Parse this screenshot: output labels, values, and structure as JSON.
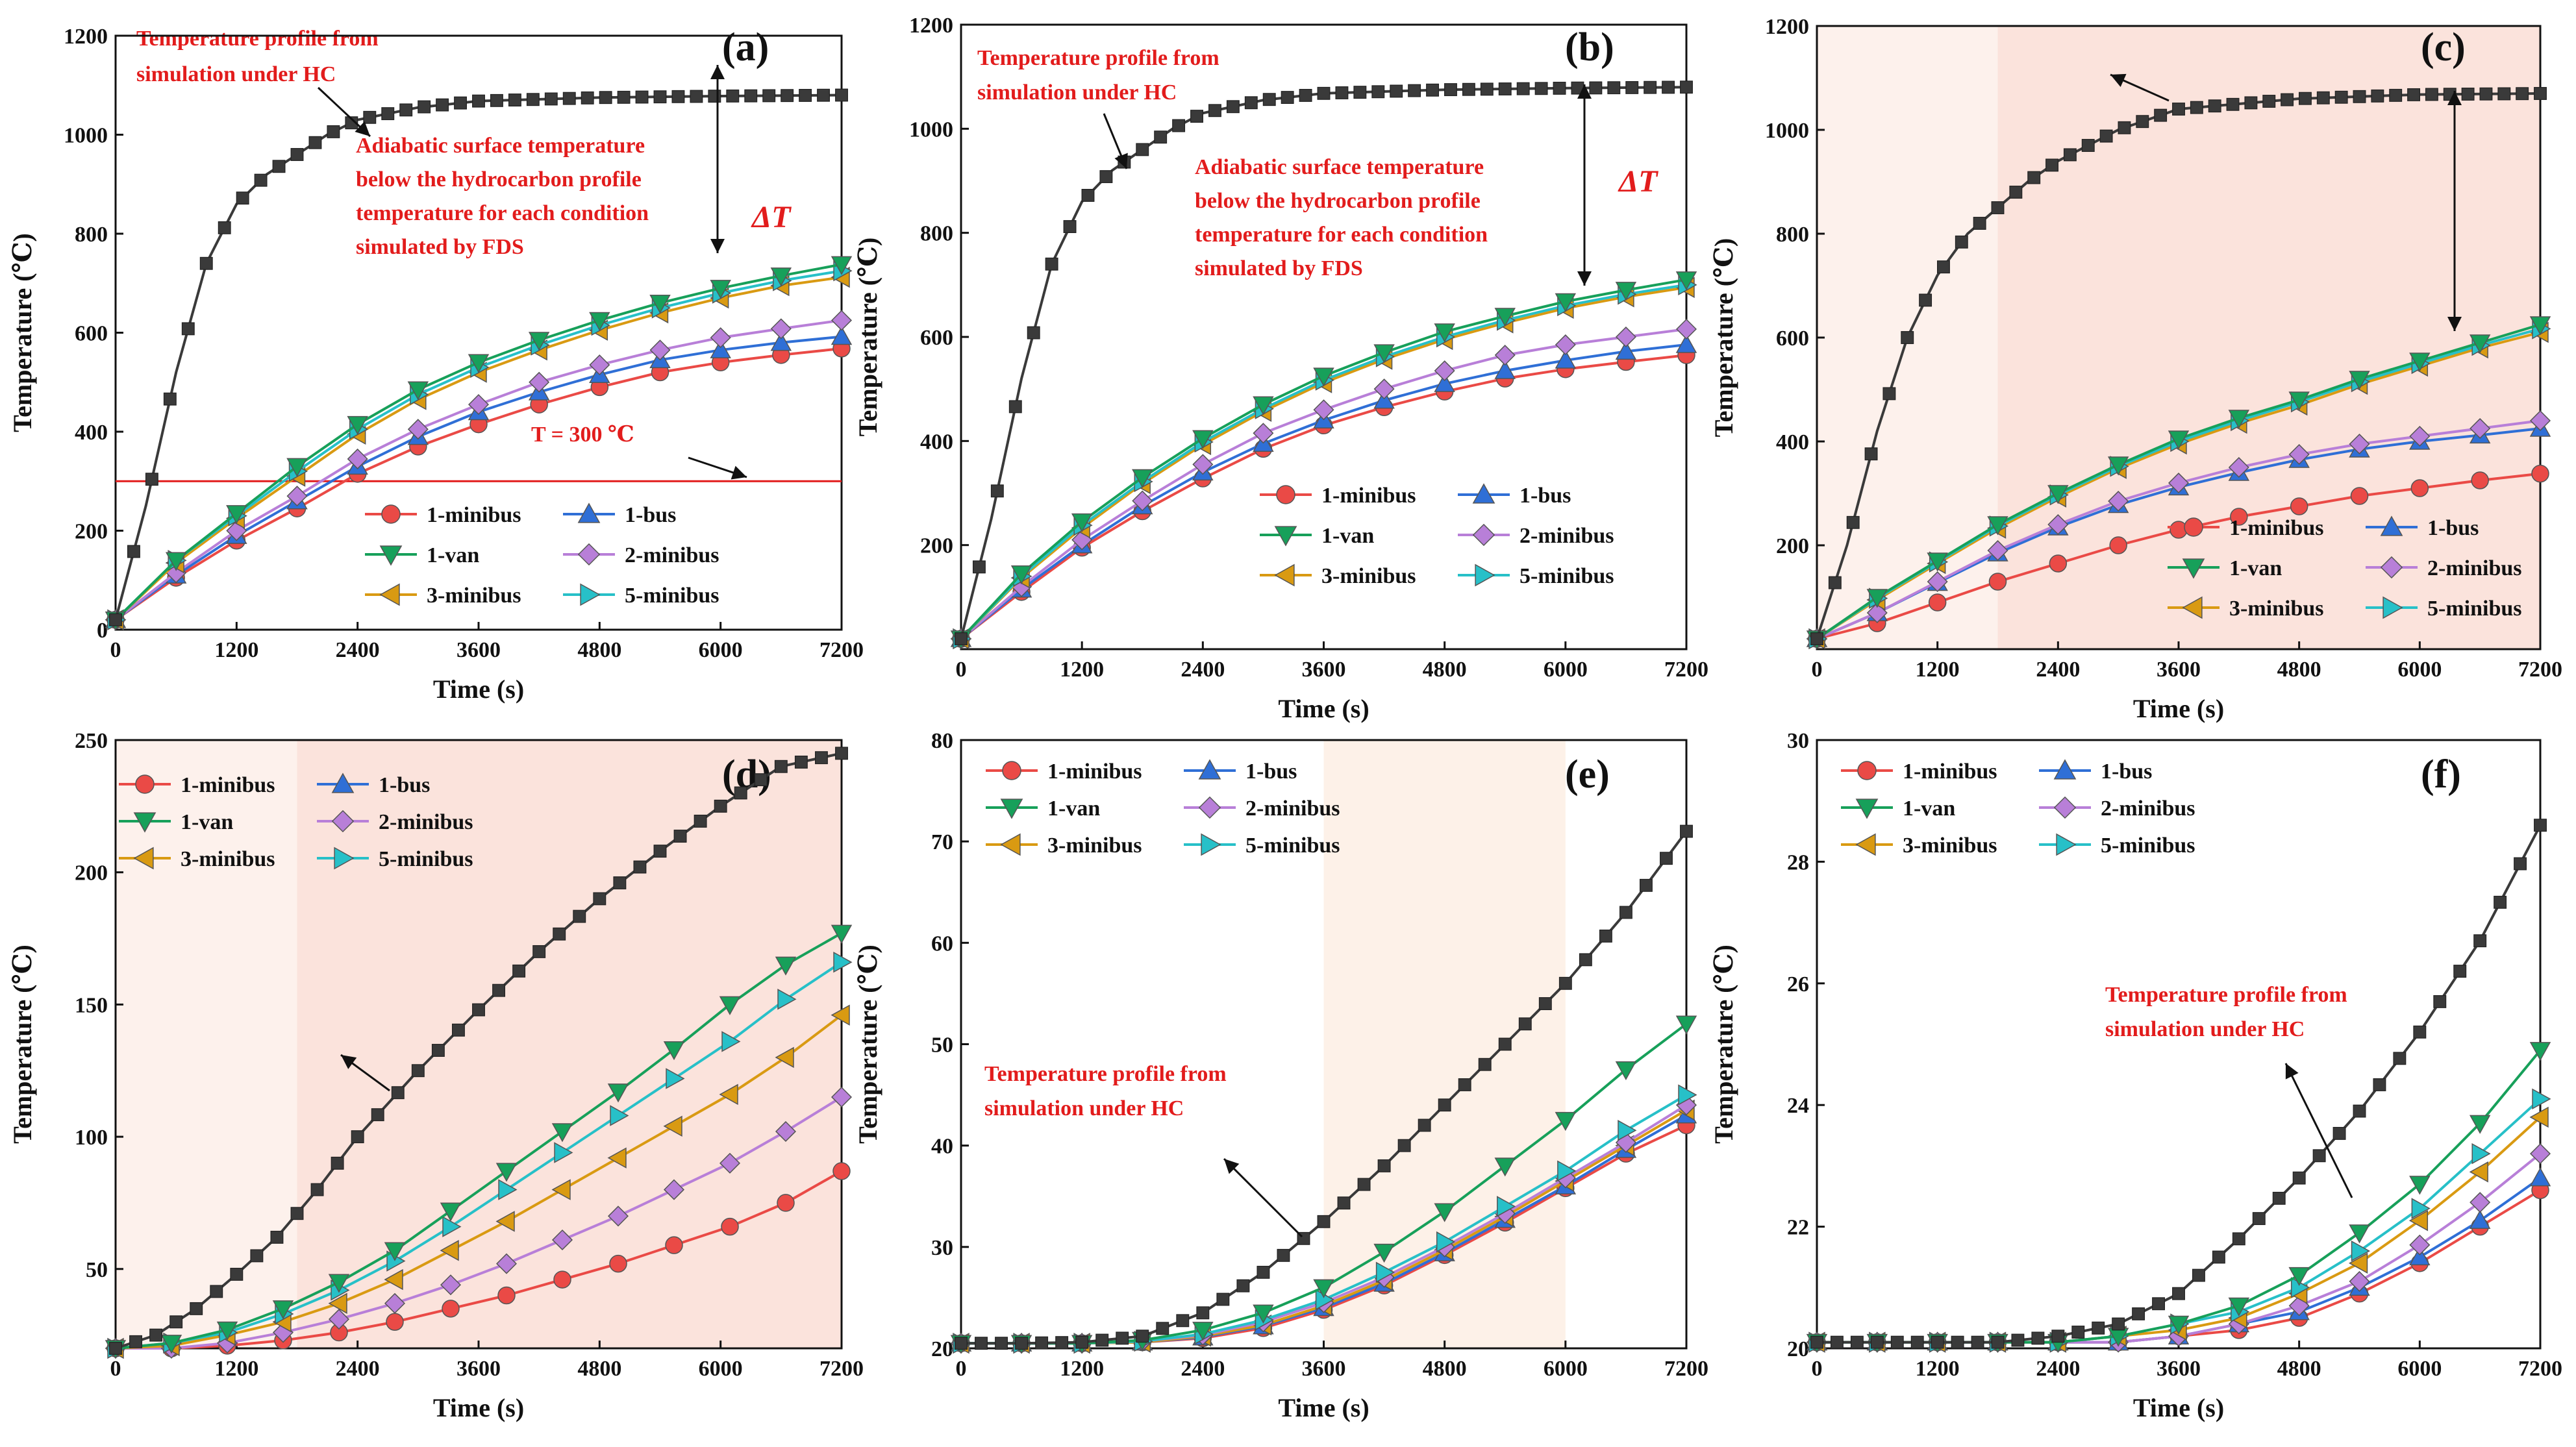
{
  "colors": {
    "HC": "#3a3a3a",
    "1-minibus": "#ea4a46",
    "1-bus": "#2f6fd6",
    "1-van": "#17a05a",
    "2-minibus": "#b87fd8",
    "3-minibus": "#d99a12",
    "5-minibus": "#27c0c8",
    "annotation": "#e21c1c",
    "threshold": "#e21c1c",
    "shade": "#fbe7e0"
  },
  "legend_labels": {
    "m1": "1-minibus",
    "b1": "1-bus",
    "v1": "1-van",
    "m2": "2-minibus",
    "m3": "3-minibus",
    "m5": "5-minibus"
  },
  "annotations": {
    "hc_line1": "Temperature profile from",
    "hc_line2": "simulation under HC",
    "adi_line1": "Adiabatic surface temperature",
    "adi_line2": "below the hydrocarbon profile",
    "adi_line3": "temperature for each condition",
    "adi_line4": "simulated by FDS",
    "delta_t": "ΔT",
    "threshold": "T = 300 ℃"
  },
  "chart_data": [
    {
      "panel": "(a)",
      "type": "line",
      "xlabel": "Time (s)",
      "ylabel": "Temperature (℃)",
      "xlim": [
        0,
        7200
      ],
      "ylim": [
        0,
        1200
      ],
      "xticks": [
        0,
        1200,
        2400,
        3600,
        4800,
        6000,
        7200
      ],
      "yticks": [
        0,
        200,
        400,
        600,
        800,
        1000,
        1200
      ],
      "threshold": 300,
      "hc": {
        "name": "HC",
        "x": [
          0,
          300,
          600,
          900,
          1200,
          1500,
          1800,
          2100,
          2400,
          3000,
          3600,
          4800,
          6000,
          7200
        ],
        "y": [
          20,
          250,
          520,
          740,
          860,
          920,
          960,
          1000,
          1030,
          1055,
          1068,
          1075,
          1078,
          1080
        ]
      },
      "series": [
        {
          "name": "1-van",
          "v": [
            20,
            140,
            235,
            330,
            415,
            485,
            540,
            585,
            625,
            660,
            690,
            715,
            738
          ]
        },
        {
          "name": "5-minibus",
          "v": [
            20,
            140,
            230,
            320,
            405,
            475,
            530,
            575,
            615,
            650,
            680,
            705,
            725
          ]
        },
        {
          "name": "3-minibus",
          "v": [
            20,
            135,
            225,
            310,
            395,
            465,
            520,
            565,
            605,
            640,
            670,
            695,
            712
          ]
        },
        {
          "name": "2-minibus",
          "v": [
            20,
            115,
            200,
            270,
            345,
            405,
            455,
            500,
            535,
            565,
            590,
            608,
            625
          ]
        },
        {
          "name": "1-bus",
          "v": [
            20,
            110,
            190,
            260,
            330,
            390,
            440,
            480,
            515,
            545,
            565,
            580,
            592
          ]
        },
        {
          "name": "1-minibus",
          "v": [
            20,
            105,
            180,
            245,
            315,
            370,
            415,
            455,
            490,
            520,
            540,
            555,
            568
          ]
        }
      ]
    },
    {
      "panel": "(b)",
      "type": "line",
      "xlabel": "Time (s)",
      "ylabel": "Temperature (℃)",
      "xlim": [
        0,
        7200
      ],
      "ylim": [
        0,
        1200
      ],
      "xticks": [
        0,
        1200,
        2400,
        3600,
        4800,
        6000,
        7200
      ],
      "yticks": [
        200,
        400,
        600,
        800,
        1000,
        1200
      ],
      "hc": {
        "name": "HC",
        "x": [
          0,
          300,
          600,
          900,
          1200,
          1500,
          1800,
          2100,
          2400,
          3000,
          3600,
          4800,
          6000,
          7200
        ],
        "y": [
          20,
          250,
          520,
          740,
          860,
          920,
          960,
          1000,
          1030,
          1055,
          1068,
          1075,
          1078,
          1080
        ]
      },
      "series": [
        {
          "name": "1-van",
          "v": [
            20,
            145,
            245,
            330,
            405,
            470,
            525,
            570,
            610,
            640,
            668,
            690,
            710
          ]
        },
        {
          "name": "5-minibus",
          "v": [
            20,
            140,
            238,
            322,
            398,
            462,
            517,
            562,
            600,
            632,
            660,
            682,
            700
          ]
        },
        {
          "name": "3-minibus",
          "v": [
            20,
            137,
            233,
            318,
            393,
            457,
            512,
            557,
            595,
            627,
            655,
            677,
            695
          ]
        },
        {
          "name": "2-minibus",
          "v": [
            20,
            120,
            210,
            285,
            355,
            415,
            460,
            500,
            535,
            565,
            585,
            600,
            615
          ]
        },
        {
          "name": "1-bus",
          "v": [
            20,
            115,
            200,
            275,
            340,
            395,
            440,
            478,
            510,
            535,
            555,
            572,
            585
          ]
        },
        {
          "name": "1-minibus",
          "v": [
            20,
            110,
            195,
            265,
            328,
            385,
            430,
            465,
            495,
            520,
            538,
            552,
            565
          ]
        }
      ]
    },
    {
      "panel": "(c)",
      "type": "line",
      "xlabel": "Time (s)",
      "ylabel": "Temperature (℃)",
      "xlim": [
        0,
        7200
      ],
      "ylim": [
        0,
        1200
      ],
      "xticks": [
        0,
        1200,
        2400,
        3600,
        4800,
        6000,
        7200
      ],
      "yticks": [
        200,
        400,
        600,
        800,
        1000,
        1200
      ],
      "shade_ranges": [
        [
          0,
          1800,
          "#fdf1ec"
        ],
        [
          1800,
          7200,
          "#fbe3dc"
        ]
      ],
      "hc": {
        "name": "HC",
        "x": [
          0,
          300,
          600,
          900,
          1200,
          1500,
          1800,
          2100,
          2400,
          3000,
          3600,
          4800,
          6000,
          7200
        ],
        "y": [
          20,
          200,
          420,
          600,
          720,
          800,
          850,
          900,
          940,
          1000,
          1040,
          1060,
          1068,
          1070
        ]
      },
      "series": [
        {
          "name": "1-van",
          "v": [
            20,
            100,
            170,
            240,
            300,
            355,
            405,
            445,
            480,
            520,
            555,
            590,
            625
          ]
        },
        {
          "name": "5-minibus",
          "v": [
            20,
            98,
            168,
            237,
            297,
            352,
            400,
            440,
            476,
            515,
            550,
            585,
            617
          ]
        },
        {
          "name": "3-minibus",
          "v": [
            20,
            95,
            165,
            233,
            293,
            348,
            395,
            435,
            470,
            510,
            545,
            580,
            610
          ]
        },
        {
          "name": "2-minibus",
          "v": [
            20,
            70,
            130,
            190,
            240,
            285,
            320,
            350,
            375,
            395,
            410,
            425,
            440
          ]
        },
        {
          "name": "1-bus",
          "v": [
            20,
            70,
            128,
            185,
            235,
            278,
            312,
            340,
            365,
            385,
            400,
            412,
            425
          ]
        },
        {
          "name": "1-minibus",
          "v": [
            20,
            50,
            90,
            130,
            165,
            200,
            230,
            255,
            275,
            295,
            310,
            325,
            338
          ]
        }
      ]
    },
    {
      "panel": "(d)",
      "type": "line",
      "xlabel": "Time (s)",
      "ylabel": "Temperature (℃)",
      "xlim": [
        0,
        7200
      ],
      "ylim": [
        20,
        250
      ],
      "xticks": [
        0,
        1200,
        2400,
        3600,
        4800,
        6000,
        7200
      ],
      "yticks": [
        50,
        100,
        150,
        200,
        250
      ],
      "shade_ranges": [
        [
          0,
          1800,
          "#fdf1ec"
        ],
        [
          1800,
          7200,
          "#fbe3dc"
        ]
      ],
      "hc": {
        "name": "HC",
        "x": [
          0,
          400,
          800,
          1200,
          1600,
          2000,
          2400,
          3000,
          3600,
          4200,
          4800,
          5400,
          6000,
          6600,
          7200
        ],
        "y": [
          20,
          25,
          35,
          48,
          62,
          80,
          100,
          125,
          148,
          170,
          190,
          208,
          225,
          240,
          245
        ]
      },
      "series": [
        {
          "name": "1-van",
          "v": [
            20,
            22,
            27,
            35,
            45,
            57,
            72,
            87,
            102,
            117,
            133,
            150,
            165,
            177
          ]
        },
        {
          "name": "5-minibus",
          "v": [
            20,
            22,
            26,
            33,
            42,
            53,
            66,
            80,
            94,
            108,
            122,
            136,
            152,
            166
          ]
        },
        {
          "name": "3-minibus",
          "v": [
            20,
            21,
            25,
            30,
            37,
            46,
            57,
            68,
            80,
            92,
            104,
            116,
            130,
            146
          ]
        },
        {
          "name": "2-minibus",
          "v": [
            20,
            20,
            22,
            26,
            31,
            37,
            44,
            52,
            61,
            70,
            80,
            90,
            102,
            115
          ]
        },
        {
          "name": "1-minibus",
          "v": [
            20,
            20,
            21,
            23,
            26,
            30,
            35,
            40,
            46,
            52,
            59,
            66,
            75,
            87
          ]
        }
      ]
    },
    {
      "panel": "(e)",
      "type": "line",
      "xlabel": "Time (s)",
      "ylabel": "Temperature (℃)",
      "xlim": [
        0,
        7200
      ],
      "ylim": [
        20,
        80
      ],
      "xticks": [
        0,
        1200,
        2400,
        3600,
        4800,
        6000,
        7200
      ],
      "yticks": [
        20,
        30,
        40,
        50,
        60,
        70,
        80
      ],
      "shade_ranges": [
        [
          3600,
          6000,
          "#fdf1e8"
        ]
      ],
      "hc": {
        "name": "HC",
        "x": [
          0,
          600,
          1200,
          1800,
          2400,
          3000,
          3600,
          4200,
          4800,
          5400,
          6000,
          6600,
          7200
        ],
        "y": [
          20.5,
          20.5,
          20.6,
          21.2,
          23.5,
          27.5,
          32.5,
          38,
          44,
          50,
          56,
          63,
          71
        ]
      },
      "series": [
        {
          "name": "1-van",
          "v": [
            20.5,
            20.5,
            20.5,
            20.8,
            21.8,
            23.5,
            26,
            29.5,
            33.5,
            38,
            42.5,
            47.5,
            52
          ]
        },
        {
          "name": "5-minibus",
          "v": [
            20.5,
            20.5,
            20.5,
            20.7,
            21.4,
            22.8,
            24.8,
            27.5,
            30.5,
            34,
            37.5,
            41.5,
            45
          ]
        },
        {
          "name": "2-minibus",
          "v": [
            20.5,
            20.5,
            20.5,
            20.7,
            21.3,
            22.6,
            24.5,
            27,
            30,
            33.3,
            36.8,
            40.3,
            44
          ]
        },
        {
          "name": "3-minibus",
          "v": [
            20.5,
            20.5,
            20.5,
            20.6,
            21.2,
            22.3,
            24.2,
            26.7,
            29.7,
            33,
            36.5,
            40,
            43.5
          ]
        },
        {
          "name": "1-bus",
          "v": [
            20.5,
            20.5,
            20.5,
            20.6,
            21.1,
            22.2,
            24,
            26.4,
            29.4,
            32.7,
            36,
            39.6,
            43
          ]
        },
        {
          "name": "1-minibus",
          "v": [
            20.5,
            20.5,
            20.5,
            20.6,
            21,
            22,
            23.8,
            26.2,
            29.2,
            32.4,
            35.8,
            39.2,
            42
          ]
        }
      ]
    },
    {
      "panel": "(f)",
      "type": "line",
      "xlabel": "Time (s)",
      "ylabel": "Temperature (℃)",
      "xlim": [
        0,
        7200
      ],
      "ylim": [
        20,
        30
      ],
      "xticks": [
        0,
        1200,
        2400,
        3600,
        4800,
        6000,
        7200
      ],
      "yticks": [
        20,
        22,
        24,
        26,
        28,
        30
      ],
      "hc": {
        "name": "HC",
        "x": [
          0,
          600,
          1200,
          1800,
          2400,
          3000,
          3600,
          4200,
          4800,
          5400,
          6000,
          6600,
          7200
        ],
        "y": [
          20.1,
          20.1,
          20.1,
          20.1,
          20.2,
          20.4,
          20.9,
          21.8,
          22.8,
          23.9,
          25.2,
          26.7,
          28.6
        ]
      },
      "series": [
        {
          "name": "1-van",
          "v": [
            20.1,
            20.1,
            20.1,
            20.1,
            20.1,
            20.2,
            20.4,
            20.7,
            21.2,
            21.9,
            22.7,
            23.7,
            24.9
          ]
        },
        {
          "name": "5-minibus",
          "v": [
            20.1,
            20.1,
            20.1,
            20.1,
            20.1,
            20.2,
            20.4,
            20.6,
            21,
            21.6,
            22.3,
            23.2,
            24.1
          ]
        },
        {
          "name": "3-minibus",
          "v": [
            20.1,
            20.1,
            20.1,
            20.1,
            20.1,
            20.2,
            20.3,
            20.5,
            20.9,
            21.4,
            22.1,
            22.9,
            23.8
          ]
        },
        {
          "name": "2-minibus",
          "v": [
            20.1,
            20.1,
            20.1,
            20.1,
            20.1,
            20.1,
            20.2,
            20.4,
            20.7,
            21.1,
            21.7,
            22.4,
            23.2
          ]
        },
        {
          "name": "1-bus",
          "v": [
            20.1,
            20.1,
            20.1,
            20.1,
            20.1,
            20.1,
            20.2,
            20.4,
            20.6,
            21,
            21.5,
            22.1,
            22.8
          ]
        },
        {
          "name": "1-minibus",
          "v": [
            20.1,
            20.1,
            20.1,
            20.1,
            20.1,
            20.1,
            20.2,
            20.3,
            20.5,
            20.9,
            21.4,
            22,
            22.6
          ]
        }
      ]
    }
  ]
}
